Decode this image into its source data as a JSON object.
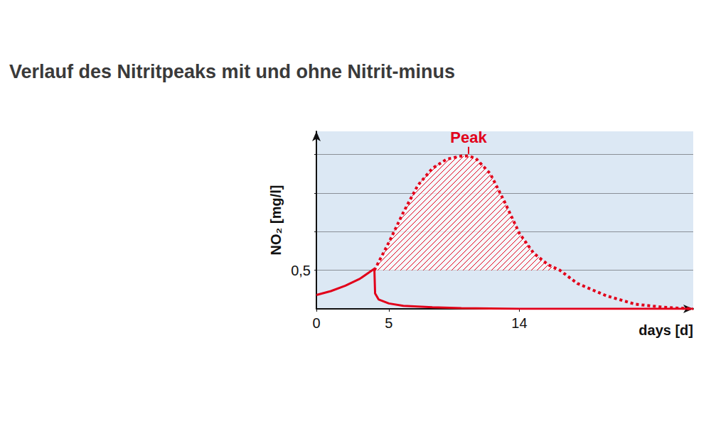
{
  "chart_data": {
    "type": "line",
    "title": "Verlauf des Nitritpeaks mit und ohne Nitrit-minus",
    "x_label": "days [d]",
    "y_label": "NO₂ [mg/l]",
    "xlim": [
      0,
      26
    ],
    "xticks": [
      0,
      5,
      14
    ],
    "ylim": [
      0,
      2.3
    ],
    "yticks": [
      {
        "value": 0.5,
        "label": "0,5"
      },
      {
        "value": 1,
        "label": null
      },
      {
        "value": 1.5,
        "label": null
      },
      {
        "value": 2,
        "label": null
      }
    ],
    "grid": true,
    "series": [
      {
        "color": "#e2001a",
        "line_style": "solid",
        "x": [
          0,
          1,
          2,
          3,
          4,
          4.05,
          4.3,
          5,
          6,
          8,
          10,
          14,
          20,
          26
        ],
        "values": [
          0.18,
          0.23,
          0.3,
          0.39,
          0.52,
          0.2,
          0.12,
          0.07,
          0.04,
          0.02,
          0.01,
          0,
          0,
          0
        ]
      },
      {
        "color": "#e2001a",
        "line_style": "dotted",
        "x": [
          4,
          5,
          6,
          7,
          8,
          9,
          10,
          10.5,
          11,
          12,
          13,
          14,
          15,
          16,
          16.8,
          18,
          20,
          22,
          24,
          26
        ],
        "values": [
          0.5,
          0.86,
          1.25,
          1.6,
          1.82,
          1.94,
          1.98,
          1.98,
          1.95,
          1.75,
          1.38,
          0.98,
          0.72,
          0.57,
          0.5,
          0.33,
          0.17,
          0.06,
          0.02,
          0
        ]
      }
    ],
    "annotations": [
      {
        "text": "Peak",
        "x": 10.5,
        "y": 1.98
      }
    ]
  }
}
